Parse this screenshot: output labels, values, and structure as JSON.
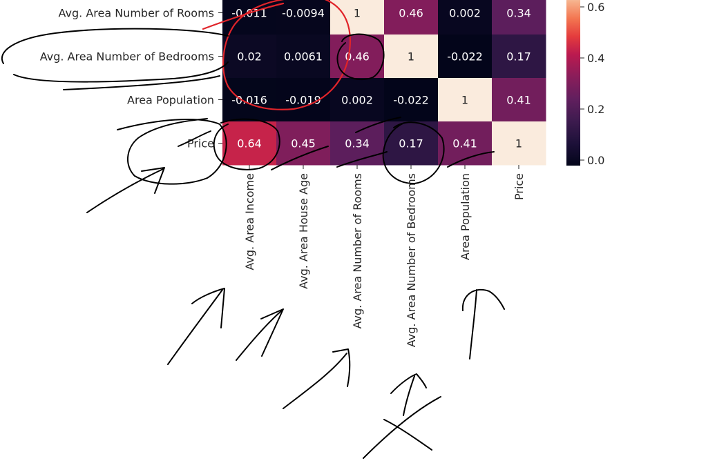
{
  "chart_data": {
    "type": "heatmap",
    "rows": [
      "Avg. Area Number of Rooms",
      "Avg. Area Number of Bedrooms",
      "Area Population",
      "Price"
    ],
    "columns": [
      "Avg. Area Income",
      "Avg. Area House Age",
      "Avg. Area Number of Rooms",
      "Avg. Area Number of Bedrooms",
      "Area Population",
      "Price"
    ],
    "values": [
      [
        -0.011,
        -0.0094,
        1,
        0.46,
        0.002,
        0.34
      ],
      [
        0.02,
        0.0061,
        0.46,
        1,
        -0.022,
        0.17
      ],
      [
        -0.016,
        -0.019,
        0.002,
        -0.022,
        1,
        0.41
      ],
      [
        0.64,
        0.45,
        0.34,
        0.17,
        0.41,
        1
      ]
    ],
    "value_labels": [
      [
        "-0.011",
        "-0.0094",
        "1",
        "0.46",
        "0.002",
        "0.34"
      ],
      [
        "0.02",
        "0.0061",
        "0.46",
        "1",
        "-0.022",
        "0.17"
      ],
      [
        "-0.016",
        "-0.019",
        "0.002",
        "-0.022",
        "1",
        "0.41"
      ],
      [
        "0.64",
        "0.45",
        "0.34",
        "0.17",
        "0.41",
        "1"
      ]
    ],
    "colorbar": {
      "ticks": [
        "0.0",
        "0.2",
        "0.4",
        "0.6"
      ],
      "tick_values": [
        0,
        0.2,
        0.4,
        0.6
      ],
      "range": [
        -0.022,
        1
      ]
    },
    "colormap": "rocket",
    "annotations": "hand-drawn circles and arrows (red and black ink)"
  },
  "colors": {
    "ink_black": "#000000",
    "ink_red": "#e0242a",
    "text": "#262626"
  }
}
